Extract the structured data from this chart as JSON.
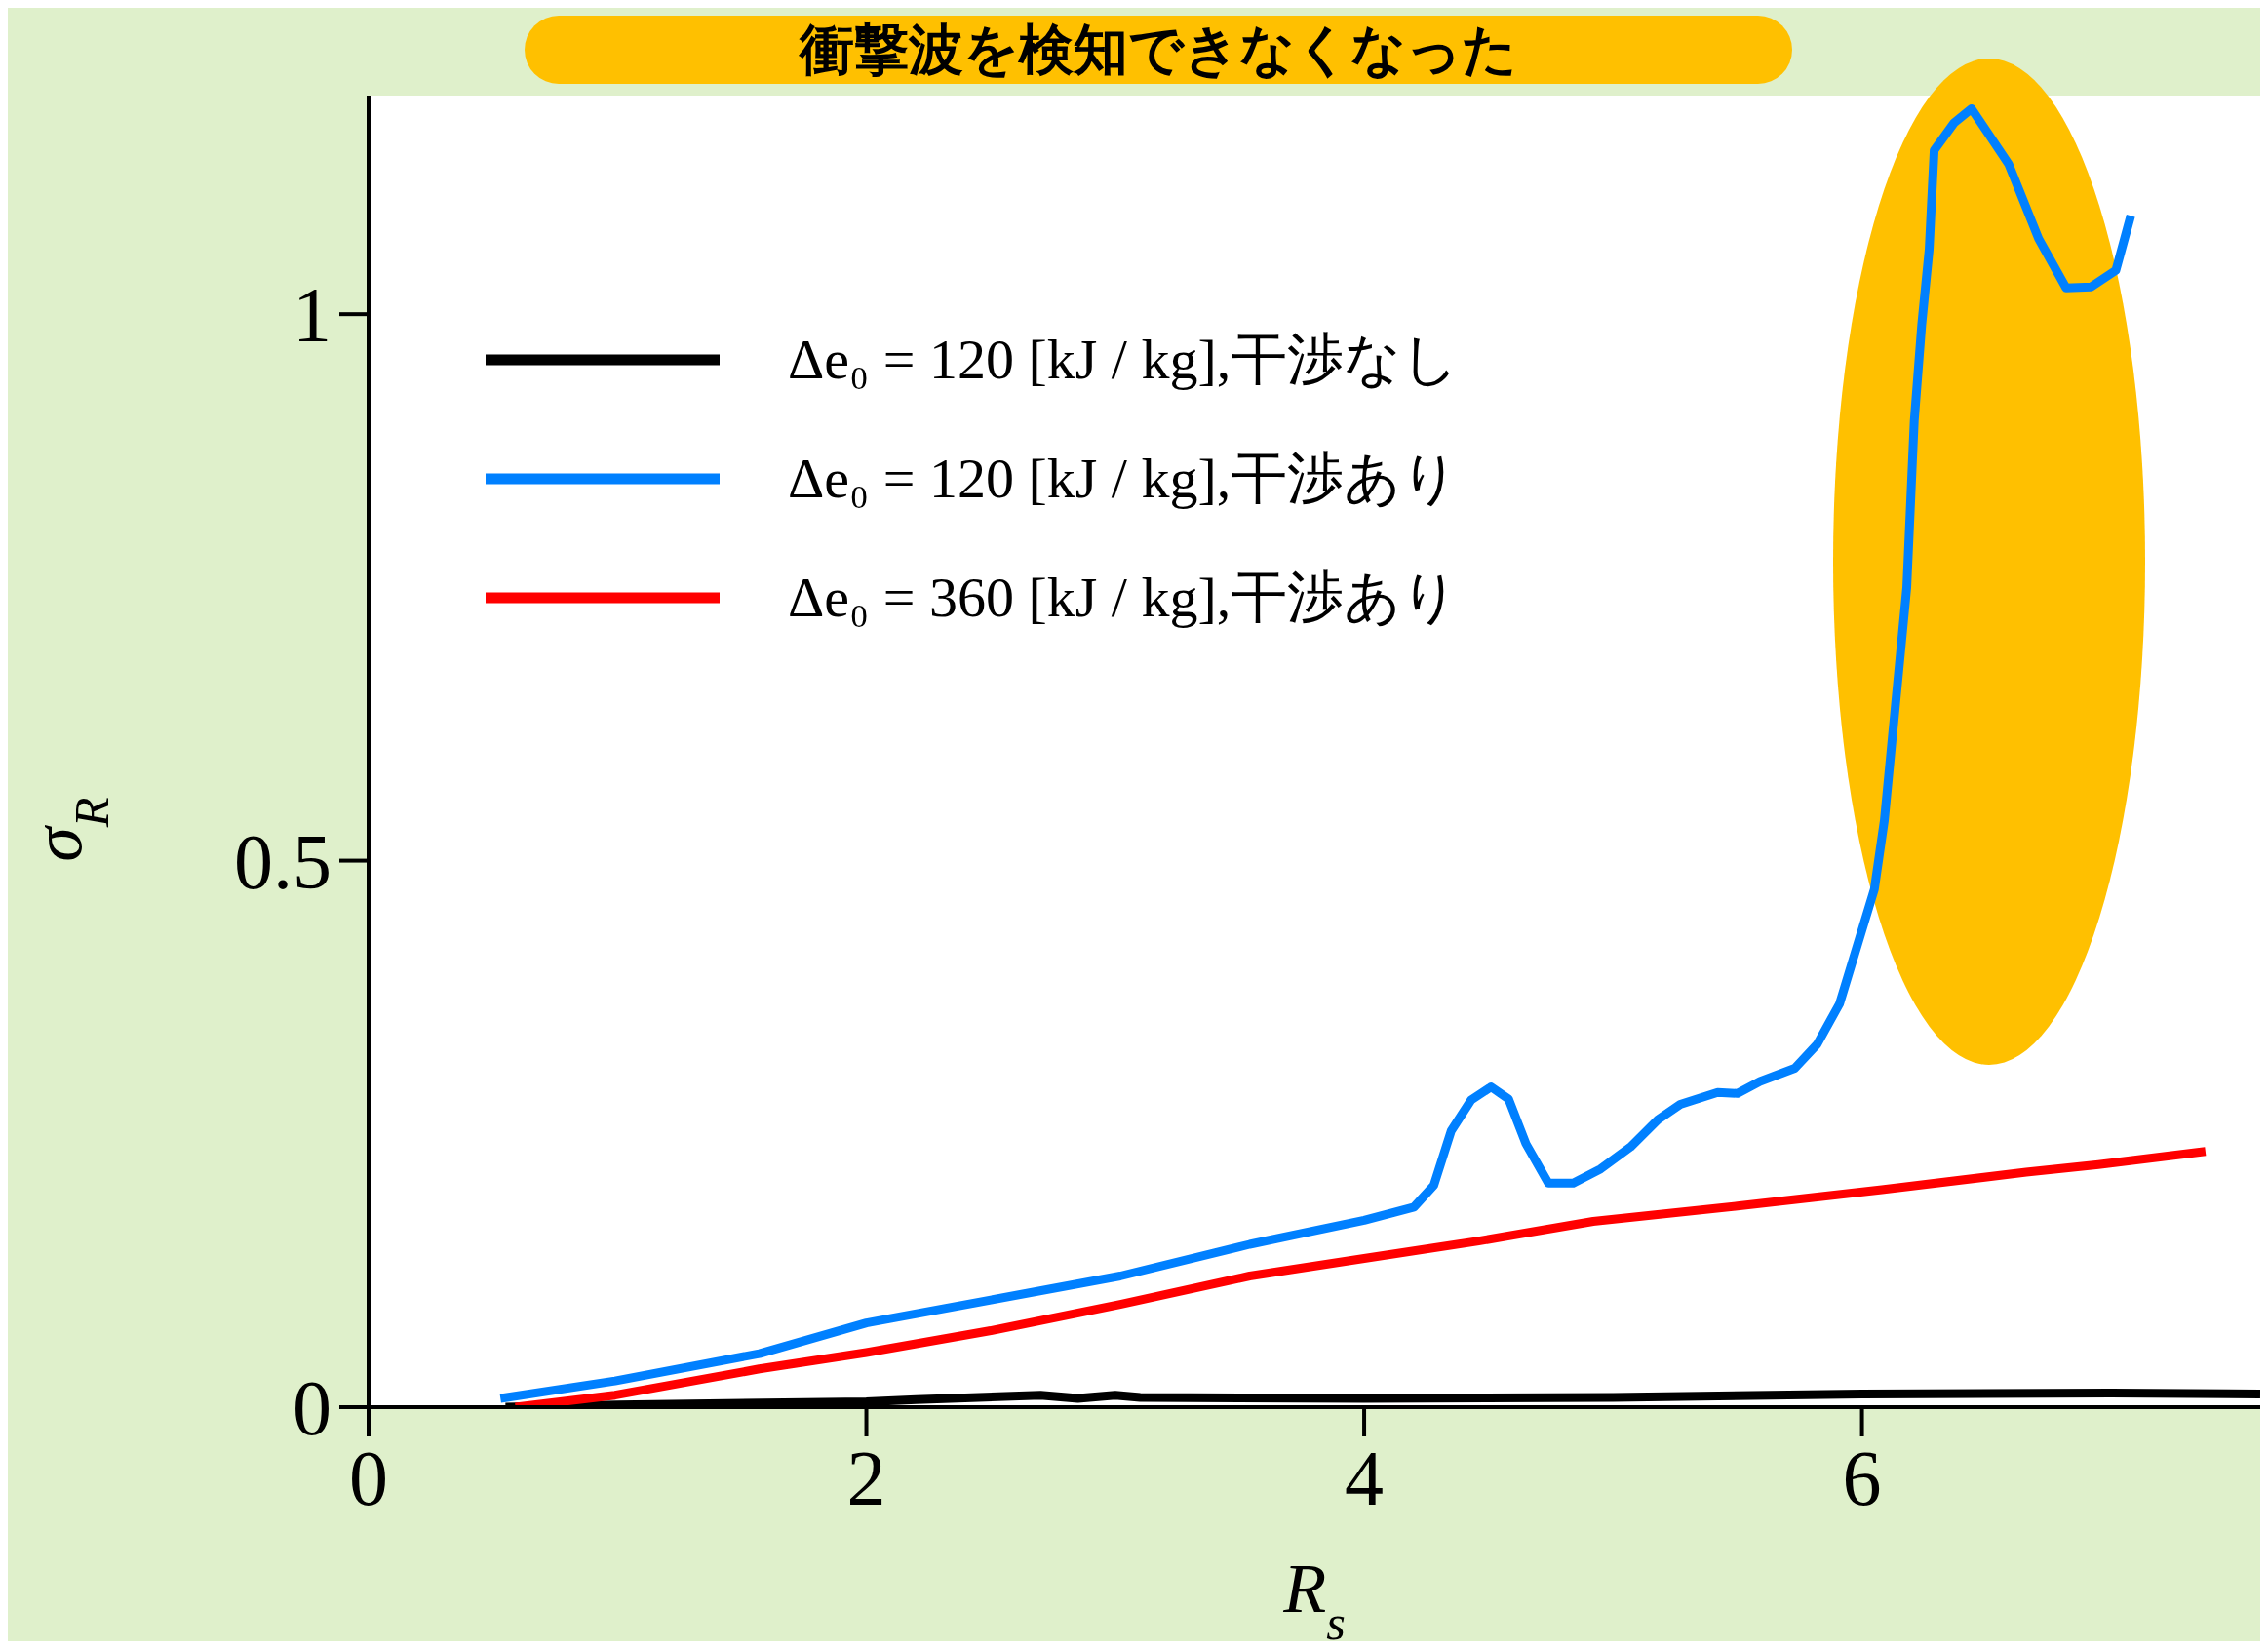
{
  "chart_data": {
    "type": "line",
    "title": "衝撃波を検知できなくなった",
    "xlabel": "R$_{s}$",
    "ylabel": "σ$_{R}$",
    "xlim": [
      0,
      7.6
    ],
    "xticks": [
      0,
      2,
      4,
      6
    ],
    "ylim": [
      0,
      1.2
    ],
    "yticks": [
      0,
      0.5,
      1
    ],
    "grid": false,
    "legend": "top left",
    "marker": "none",
    "line_style": "solid",
    "series": [
      {
        "name": "Δe₀ = 120 [kJ / kg],干渉なし",
        "color": "#000000",
        "x": [
          0.55,
          1,
          2,
          2.2,
          2.7,
          2.85,
          3.0,
          3.1,
          4,
          5,
          6,
          7,
          7.6
        ],
        "values": [
          0,
          0.002,
          0.005,
          0.007,
          0.011,
          0.008,
          0.011,
          0.009,
          0.008,
          0.009,
          0.012,
          0.013,
          0.012
        ]
      },
      {
        "name": "Δe₀ = 120 [kJ / kg],干渉あり",
        "color": "#0080ff",
        "x": [
          0.53,
          0.99,
          1.57,
          2.0,
          2.5,
          3.02,
          3.54,
          4.0,
          4.2,
          4.28,
          4.35,
          4.43,
          4.51,
          4.58,
          4.65,
          4.74,
          4.84,
          4.95,
          5.07,
          5.18,
          5.27,
          5.42,
          5.5,
          5.59,
          5.73,
          5.82,
          5.91,
          6.05,
          6.09,
          6.18,
          6.21,
          6.24,
          6.27,
          6.29,
          6.37,
          6.44,
          6.59,
          6.71,
          6.82,
          6.92,
          7.02,
          7.08
        ],
        "values": [
          0.008,
          0.024,
          0.049,
          0.077,
          0.098,
          0.12,
          0.149,
          0.171,
          0.183,
          0.203,
          0.253,
          0.281,
          0.293,
          0.282,
          0.241,
          0.205,
          0.205,
          0.218,
          0.238,
          0.263,
          0.277,
          0.288,
          0.287,
          0.298,
          0.31,
          0.332,
          0.369,
          0.474,
          0.537,
          0.75,
          0.902,
          0.99,
          1.059,
          1.15,
          1.175,
          1.188,
          1.137,
          1.069,
          1.024,
          1.025,
          1.04,
          1.09
        ]
      },
      {
        "name": "Δe₀ = 360 [kJ / kg],干渉あり",
        "color": "#ff0000",
        "x": [
          0.59,
          0.99,
          1.57,
          2.0,
          2.5,
          3.02,
          3.54,
          4.0,
          4.46,
          4.92,
          5.5,
          6.08,
          6.66,
          6.95,
          7.38
        ],
        "values": [
          0,
          0.011,
          0.035,
          0.05,
          0.07,
          0.094,
          0.12,
          0.136,
          0.152,
          0.17,
          0.184,
          0.199,
          0.215,
          0.222,
          0.234
        ]
      }
    ]
  }
}
